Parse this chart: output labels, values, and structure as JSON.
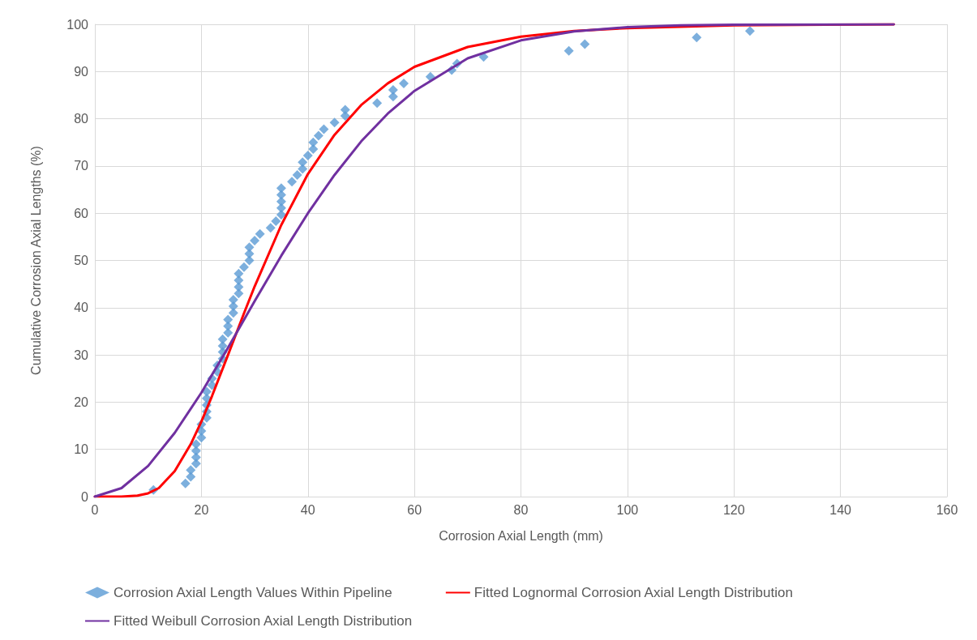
{
  "chart_data": {
    "type": "scatter",
    "xlabel": "Corrosion Axial Length (mm)",
    "ylabel": "Cumulative Corrosion Axial Lengths (%)",
    "xlim": [
      0,
      160
    ],
    "xticks": [
      0,
      20,
      40,
      60,
      80,
      100,
      120,
      140,
      160
    ],
    "ylim": [
      0,
      100
    ],
    "yticks": [
      0,
      10,
      20,
      30,
      40,
      50,
      60,
      70,
      80,
      90,
      100
    ],
    "grid": true,
    "legend": "bottom",
    "series": [
      {
        "name": "Corrosion Axial Length Values Within Pipeline",
        "type": "scatter",
        "marker": "diamond",
        "color": "#5b9bd5",
        "x": [
          11,
          17,
          18,
          18,
          19,
          19,
          19,
          19,
          20,
          20,
          20,
          21,
          21,
          21,
          21,
          21,
          22,
          22,
          23,
          23,
          24,
          24,
          24,
          24,
          25,
          25,
          25,
          26,
          26,
          26,
          27,
          27,
          27,
          27,
          28,
          29,
          29,
          29,
          30,
          31,
          33,
          34,
          35,
          35,
          35,
          35,
          35,
          37,
          38,
          39,
          39,
          40,
          41,
          41,
          42,
          43,
          45,
          47,
          47,
          53,
          56,
          56,
          58,
          63,
          67,
          68,
          73,
          89,
          92,
          113,
          123
        ],
        "values": [
          1.4,
          2.8,
          4.2,
          5.6,
          7,
          8.3,
          9.7,
          11.1,
          12.5,
          13.9,
          15.3,
          16.7,
          18,
          19.4,
          20.8,
          22.2,
          23.6,
          25,
          26.4,
          27.8,
          29.2,
          30.6,
          31.9,
          33.3,
          34.7,
          36.1,
          37.5,
          38.9,
          40.3,
          41.7,
          43,
          44.4,
          45.8,
          47.2,
          48.6,
          50,
          51.4,
          52.8,
          54.2,
          55.6,
          56.9,
          58.3,
          59.7,
          61.1,
          62.5,
          63.9,
          65.3,
          66.7,
          68.1,
          69.4,
          70.8,
          72.2,
          73.6,
          75,
          76.4,
          77.8,
          79.2,
          80.6,
          81.9,
          83.3,
          84.7,
          86.1,
          87.5,
          88.9,
          90.3,
          91.7,
          93.1,
          94.4,
          95.8,
          97.2,
          98.6
        ]
      },
      {
        "name": "Fitted Lognormal Corrosion Axial Length Distribution",
        "type": "line",
        "marker": "none",
        "color": "#ff0000",
        "x": [
          0,
          5,
          8,
          10,
          12,
          15,
          18,
          20,
          22,
          25,
          28,
          30,
          35,
          40,
          45,
          50,
          55,
          60,
          70,
          80,
          90,
          100,
          120,
          150
        ],
        "values": [
          0,
          0,
          0.2,
          0.7,
          1.8,
          5.4,
          11.1,
          15.9,
          21.3,
          30,
          38.8,
          44.5,
          57.5,
          68.3,
          76.6,
          82.9,
          87.5,
          91,
          95.2,
          97.4,
          98.6,
          99.2,
          99.8,
          100
        ]
      },
      {
        "name": "Fitted Weibull Corrosion Axial Length Distribution",
        "type": "line",
        "marker": "none",
        "color": "#7030a0",
        "x": [
          0,
          5,
          10,
          15,
          20,
          25,
          30,
          35,
          40,
          45,
          50,
          55,
          60,
          70,
          80,
          90,
          100,
          110,
          120,
          150
        ],
        "values": [
          0,
          1.8,
          6.5,
          13.5,
          22,
          31.5,
          41.4,
          51,
          60,
          68.1,
          75.2,
          81.1,
          85.9,
          92.8,
          96.6,
          98.5,
          99.4,
          99.8,
          99.9,
          100
        ]
      }
    ]
  }
}
